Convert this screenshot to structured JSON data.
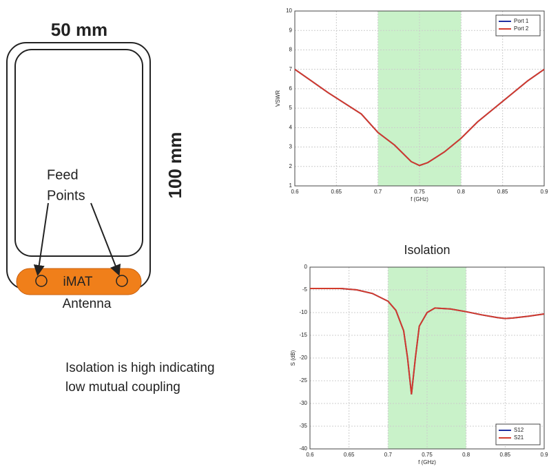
{
  "diagram": {
    "width_label": "50 mm",
    "height_label": "100 mm",
    "feed_label": [
      "Feed",
      "Points"
    ],
    "antenna_label": "iMAT",
    "antenna_caption": "Antenna",
    "note": [
      "Isolation is high indicating",
      "low mutual coupling"
    ]
  },
  "chart_data": [
    {
      "type": "line",
      "x_label": "f (GHz)",
      "y_label": "VSWR",
      "legend": "top-right",
      "grid": true,
      "highlight": [
        0.7,
        0.8
      ],
      "xlim": [
        0.6,
        0.9
      ],
      "xticks": [
        0.6,
        0.65,
        0.7,
        0.75,
        0.8,
        0.85,
        0.9
      ],
      "ylim": [
        1,
        10
      ],
      "yticks": [
        1,
        2,
        3,
        4,
        5,
        6,
        7,
        8,
        9,
        10
      ],
      "x": [
        0.6,
        0.62,
        0.64,
        0.66,
        0.68,
        0.7,
        0.72,
        0.74,
        0.75,
        0.76,
        0.78,
        0.8,
        0.82,
        0.84,
        0.86,
        0.88,
        0.9
      ],
      "series": [
        {
          "name": "Port 1",
          "color": "#1f2fa0",
          "values": [
            7.0,
            6.4,
            5.8,
            5.25,
            4.7,
            3.75,
            3.1,
            2.25,
            2.05,
            2.2,
            2.75,
            3.45,
            4.3,
            5.0,
            5.7,
            6.4,
            7.0
          ]
        },
        {
          "name": "Port 2",
          "color": "#d33b2c",
          "values": [
            7.0,
            6.4,
            5.8,
            5.25,
            4.7,
            3.75,
            3.1,
            2.25,
            2.05,
            2.2,
            2.75,
            3.45,
            4.3,
            5.0,
            5.7,
            6.4,
            7.0
          ]
        }
      ]
    },
    {
      "type": "line",
      "title": "Isolation",
      "x_label": "f (GHz)",
      "y_label": "S (dB)",
      "legend": "bottom-right",
      "grid": true,
      "highlight": [
        0.7,
        0.8
      ],
      "xlim": [
        0.6,
        0.9
      ],
      "xticks": [
        0.6,
        0.65,
        0.7,
        0.75,
        0.8,
        0.85,
        0.9
      ],
      "ylim": [
        -40,
        0
      ],
      "yticks": [
        0,
        -5,
        -10,
        -15,
        -20,
        -25,
        -30,
        -35,
        -40
      ],
      "x": [
        0.6,
        0.64,
        0.66,
        0.68,
        0.7,
        0.71,
        0.72,
        0.725,
        0.73,
        0.735,
        0.74,
        0.75,
        0.76,
        0.78,
        0.8,
        0.82,
        0.84,
        0.85,
        0.86,
        0.88,
        0.9
      ],
      "series": [
        {
          "name": "S12",
          "color": "#1f2fa0",
          "values": [
            -4.7,
            -4.7,
            -5.0,
            -5.8,
            -7.5,
            -9.5,
            -14,
            -20,
            -28,
            -20,
            -13,
            -10,
            -9.0,
            -9.2,
            -9.8,
            -10.5,
            -11.1,
            -11.3,
            -11.2,
            -10.8,
            -10.3
          ]
        },
        {
          "name": "S21",
          "color": "#d33b2c",
          "values": [
            -4.7,
            -4.7,
            -5.0,
            -5.8,
            -7.5,
            -9.5,
            -14,
            -20,
            -28,
            -20,
            -13,
            -10,
            -9.0,
            -9.2,
            -9.8,
            -10.5,
            -11.1,
            -11.3,
            -11.2,
            -10.8,
            -10.3
          ]
        }
      ]
    }
  ]
}
